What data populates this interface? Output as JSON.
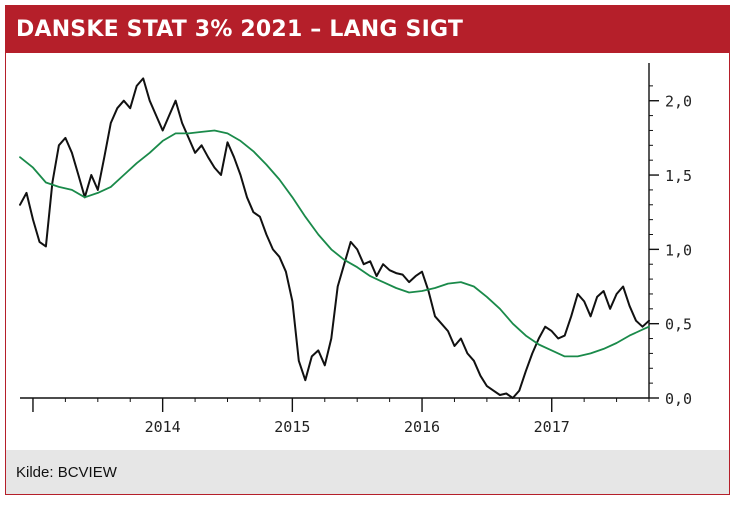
{
  "header": {
    "title": "DANSKE STAT 3% 2021 – LANG SIGT"
  },
  "footer": {
    "source": "Kilde: BCVIEW"
  },
  "colors": {
    "brand_red": "#b51f2a",
    "price_line": "#111111",
    "average_line": "#1a8a4a",
    "footer_bg": "#e6e6e6"
  },
  "chart_data": {
    "type": "line",
    "title": "DANSKE STAT 3% 2021 – LANG SIGT",
    "xlabel": "",
    "ylabel": "",
    "x_ticks": [
      "2014",
      "2015",
      "2016",
      "2017"
    ],
    "y_ticks": [
      "0,0",
      "0,5",
      "1,0",
      "1,5",
      "2,0"
    ],
    "ylim": [
      0.0,
      2.2
    ],
    "xlim": [
      2012.9,
      2017.75
    ],
    "grid": false,
    "legend": "none",
    "series": [
      {
        "color": "#111111",
        "points": [
          [
            2012.9,
            1.3
          ],
          [
            2012.95,
            1.38
          ],
          [
            2013.0,
            1.2
          ],
          [
            2013.05,
            1.05
          ],
          [
            2013.1,
            1.02
          ],
          [
            2013.15,
            1.45
          ],
          [
            2013.2,
            1.7
          ],
          [
            2013.25,
            1.75
          ],
          [
            2013.3,
            1.65
          ],
          [
            2013.35,
            1.5
          ],
          [
            2013.4,
            1.35
          ],
          [
            2013.45,
            1.5
          ],
          [
            2013.5,
            1.4
          ],
          [
            2013.55,
            1.62
          ],
          [
            2013.6,
            1.85
          ],
          [
            2013.65,
            1.95
          ],
          [
            2013.7,
            2.0
          ],
          [
            2013.75,
            1.95
          ],
          [
            2013.8,
            2.1
          ],
          [
            2013.85,
            2.15
          ],
          [
            2013.9,
            2.0
          ],
          [
            2013.95,
            1.9
          ],
          [
            2014.0,
            1.8
          ],
          [
            2014.05,
            1.9
          ],
          [
            2014.1,
            2.0
          ],
          [
            2014.15,
            1.85
          ],
          [
            2014.2,
            1.75
          ],
          [
            2014.25,
            1.65
          ],
          [
            2014.3,
            1.7
          ],
          [
            2014.35,
            1.62
          ],
          [
            2014.4,
            1.55
          ],
          [
            2014.45,
            1.5
          ],
          [
            2014.5,
            1.72
          ],
          [
            2014.55,
            1.62
          ],
          [
            2014.6,
            1.5
          ],
          [
            2014.65,
            1.35
          ],
          [
            2014.7,
            1.25
          ],
          [
            2014.75,
            1.22
          ],
          [
            2014.8,
            1.1
          ],
          [
            2014.85,
            1.0
          ],
          [
            2014.9,
            0.95
          ],
          [
            2014.95,
            0.85
          ],
          [
            2015.0,
            0.65
          ],
          [
            2015.05,
            0.25
          ],
          [
            2015.1,
            0.12
          ],
          [
            2015.15,
            0.28
          ],
          [
            2015.2,
            0.32
          ],
          [
            2015.25,
            0.22
          ],
          [
            2015.3,
            0.4
          ],
          [
            2015.35,
            0.75
          ],
          [
            2015.4,
            0.9
          ],
          [
            2015.45,
            1.05
          ],
          [
            2015.5,
            1.0
          ],
          [
            2015.55,
            0.9
          ],
          [
            2015.6,
            0.92
          ],
          [
            2015.65,
            0.82
          ],
          [
            2015.7,
            0.9
          ],
          [
            2015.75,
            0.86
          ],
          [
            2015.8,
            0.84
          ],
          [
            2015.85,
            0.83
          ],
          [
            2015.9,
            0.78
          ],
          [
            2015.95,
            0.82
          ],
          [
            2016.0,
            0.85
          ],
          [
            2016.05,
            0.72
          ],
          [
            2016.1,
            0.55
          ],
          [
            2016.15,
            0.5
          ],
          [
            2016.2,
            0.45
          ],
          [
            2016.25,
            0.35
          ],
          [
            2016.3,
            0.4
          ],
          [
            2016.35,
            0.3
          ],
          [
            2016.4,
            0.25
          ],
          [
            2016.45,
            0.15
          ],
          [
            2016.5,
            0.08
          ],
          [
            2016.55,
            0.05
          ],
          [
            2016.6,
            0.02
          ],
          [
            2016.65,
            0.03
          ],
          [
            2016.7,
            0.0
          ],
          [
            2016.75,
            0.05
          ],
          [
            2016.8,
            0.18
          ],
          [
            2016.85,
            0.3
          ],
          [
            2016.9,
            0.4
          ],
          [
            2016.95,
            0.48
          ],
          [
            2017.0,
            0.45
          ],
          [
            2017.05,
            0.4
          ],
          [
            2017.1,
            0.42
          ],
          [
            2017.15,
            0.55
          ],
          [
            2017.2,
            0.7
          ],
          [
            2017.25,
            0.65
          ],
          [
            2017.3,
            0.55
          ],
          [
            2017.35,
            0.68
          ],
          [
            2017.4,
            0.72
          ],
          [
            2017.45,
            0.6
          ],
          [
            2017.5,
            0.7
          ],
          [
            2017.55,
            0.75
          ],
          [
            2017.6,
            0.62
          ],
          [
            2017.65,
            0.52
          ],
          [
            2017.7,
            0.48
          ],
          [
            2017.75,
            0.52
          ]
        ]
      },
      {
        "color": "#1a8a4a",
        "points": [
          [
            2012.9,
            1.62
          ],
          [
            2013.0,
            1.55
          ],
          [
            2013.1,
            1.45
          ],
          [
            2013.2,
            1.42
          ],
          [
            2013.3,
            1.4
          ],
          [
            2013.4,
            1.35
          ],
          [
            2013.5,
            1.38
          ],
          [
            2013.6,
            1.42
          ],
          [
            2013.7,
            1.5
          ],
          [
            2013.8,
            1.58
          ],
          [
            2013.9,
            1.65
          ],
          [
            2014.0,
            1.73
          ],
          [
            2014.1,
            1.78
          ],
          [
            2014.2,
            1.78
          ],
          [
            2014.3,
            1.79
          ],
          [
            2014.4,
            1.8
          ],
          [
            2014.5,
            1.78
          ],
          [
            2014.6,
            1.73
          ],
          [
            2014.7,
            1.66
          ],
          [
            2014.8,
            1.57
          ],
          [
            2014.9,
            1.47
          ],
          [
            2015.0,
            1.35
          ],
          [
            2015.1,
            1.22
          ],
          [
            2015.2,
            1.1
          ],
          [
            2015.3,
            1.0
          ],
          [
            2015.4,
            0.93
          ],
          [
            2015.5,
            0.88
          ],
          [
            2015.6,
            0.82
          ],
          [
            2015.7,
            0.78
          ],
          [
            2015.8,
            0.74
          ],
          [
            2015.9,
            0.71
          ],
          [
            2016.0,
            0.72
          ],
          [
            2016.1,
            0.74
          ],
          [
            2016.2,
            0.77
          ],
          [
            2016.3,
            0.78
          ],
          [
            2016.4,
            0.75
          ],
          [
            2016.5,
            0.68
          ],
          [
            2016.6,
            0.6
          ],
          [
            2016.7,
            0.5
          ],
          [
            2016.8,
            0.42
          ],
          [
            2016.9,
            0.36
          ],
          [
            2017.0,
            0.32
          ],
          [
            2017.1,
            0.28
          ],
          [
            2017.2,
            0.28
          ],
          [
            2017.3,
            0.3
          ],
          [
            2017.4,
            0.33
          ],
          [
            2017.5,
            0.37
          ],
          [
            2017.6,
            0.42
          ],
          [
            2017.7,
            0.46
          ],
          [
            2017.75,
            0.48
          ]
        ]
      }
    ]
  }
}
